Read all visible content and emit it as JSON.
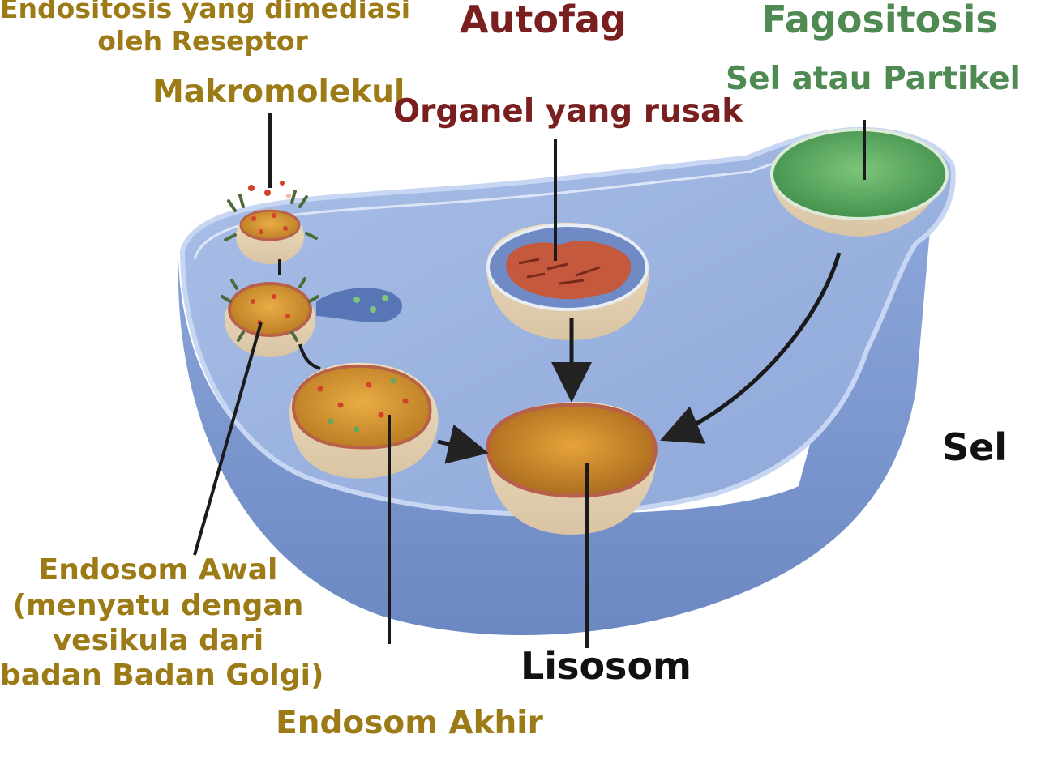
{
  "labels": {
    "receptor_mediated": [
      "Endositosis yang dimediasi",
      "oleh Reseptor"
    ],
    "autophagy": "Autofag",
    "phagocytosis": "Fagositosis",
    "macromolecule": "Makromolekul",
    "damaged_organelle": "Organel yang rusak",
    "cell_or_particle": "Sel atau Partikel",
    "cell": "Sel",
    "early_endosome": [
      "Endosom Awal",
      "(menyatu dengan",
      "vesikula dari",
      "badan Badan Golgi)"
    ],
    "lysosome": "Lisosom",
    "late_endosome": "Endosom Akhir"
  },
  "colors": {
    "gold_label": "#9c7a16",
    "maroon_label": "#7a1f1f",
    "green_label": "#4e8a52",
    "black_label": "#111111",
    "cell_body": "#7f9bd0",
    "cell_top": "#9bb3e0",
    "vesicle_fill": "#d8962e",
    "lysosome_rim": "#b8614a",
    "particle_fill": "#5ea860",
    "organelle_fill": "#c4593d"
  }
}
